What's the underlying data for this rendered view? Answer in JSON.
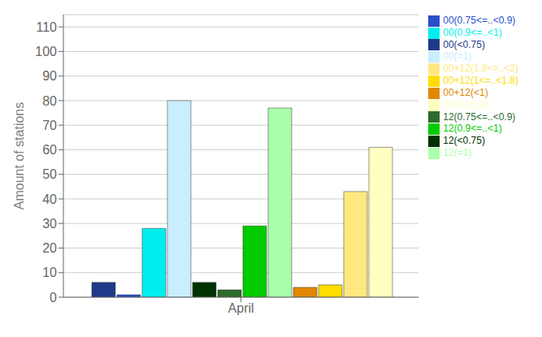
{
  "chart_data": {
    "type": "bar",
    "categories": [
      "April"
    ],
    "series": [
      {
        "name": "00(<0.75)",
        "color": "#1F3A8A",
        "values": [
          6
        ]
      },
      {
        "name": "00(0.75<=..<0.9)",
        "color": "#2B4FCC",
        "values": [
          1
        ]
      },
      {
        "name": "00(0.9<=..<1)",
        "color": "#00EEEE",
        "values": [
          28
        ]
      },
      {
        "name": "00(=1)",
        "color": "#C8EEFF",
        "values": [
          80
        ]
      },
      {
        "name": "12(<0.75)",
        "color": "#003300",
        "values": [
          6
        ]
      },
      {
        "name": "12(0.75<=..<0.9)",
        "color": "#2D6B2D",
        "values": [
          3
        ]
      },
      {
        "name": "12(0.9<=..<1)",
        "color": "#00CC00",
        "values": [
          29
        ]
      },
      {
        "name": "12(=1)",
        "color": "#AAFFAA",
        "values": [
          77
        ]
      },
      {
        "name": "00+12(<1)",
        "color": "#E08800",
        "values": [
          4
        ]
      },
      {
        "name": "00+12(1<=..<1.8)",
        "color": "#FFDD00",
        "values": [
          5
        ]
      },
      {
        "name": "00+12(1.8<=..<2)",
        "color": "#FFE880",
        "values": [
          43
        ]
      },
      {
        "name": "00+12(=2)",
        "color": "#FFFFC0",
        "values": [
          61
        ]
      }
    ],
    "ylabel": "Amount of stations",
    "ylim": [
      0,
      115
    ],
    "yticks": [
      0,
      10,
      20,
      30,
      40,
      50,
      60,
      70,
      80,
      90,
      100,
      110
    ],
    "grid": true,
    "legend": "upper right"
  }
}
